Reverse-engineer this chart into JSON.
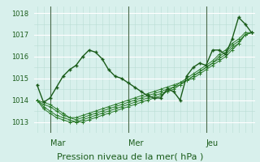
{
  "xlabel": "Pression niveau de la mer( hPa )",
  "ylim": [
    1012.5,
    1018.3
  ],
  "yticks": [
    1013,
    1014,
    1015,
    1016,
    1017,
    1018
  ],
  "day_labels": [
    "Mar",
    "Mer",
    "Jeu"
  ],
  "day_positions": [
    2,
    14,
    26
  ],
  "bg_color": "#d8f0ec",
  "grid_color_major": "#b8ddd4",
  "grid_color_minor": "#c8eae2",
  "series": [
    [
      1014.7,
      1013.9,
      1014.1,
      1014.6,
      1015.1,
      1015.4,
      1015.6,
      1016.0,
      1016.3,
      1016.2,
      1015.9,
      1015.4,
      1015.1,
      1015.0,
      1014.8,
      1014.6,
      1014.4,
      1014.2,
      1014.1,
      1014.1,
      1014.5,
      1014.4,
      1014.0,
      1015.1,
      1015.5,
      1015.7,
      1015.6,
      1016.3,
      1016.3,
      1016.1,
      1016.8,
      1017.8,
      1017.5,
      1017.1
    ],
    [
      1014.0,
      1013.9,
      1013.8,
      1013.6,
      1013.4,
      1013.2,
      1013.2,
      1013.3,
      1013.4,
      1013.5,
      1013.6,
      1013.7,
      1013.8,
      1013.9,
      1014.0,
      1014.1,
      1014.2,
      1014.3,
      1014.4,
      1014.5,
      1014.6,
      1014.7,
      1014.8,
      1014.9,
      1015.0,
      1015.2,
      1015.4,
      1015.6,
      1015.8,
      1016.0,
      1016.3,
      1016.6,
      1017.0,
      1017.1
    ],
    [
      1014.0,
      1013.8,
      1013.7,
      1013.5,
      1013.3,
      1013.2,
      1013.1,
      1013.2,
      1013.3,
      1013.4,
      1013.5,
      1013.6,
      1013.7,
      1013.8,
      1013.9,
      1014.0,
      1014.1,
      1014.2,
      1014.3,
      1014.4,
      1014.5,
      1014.6,
      1014.7,
      1014.9,
      1015.1,
      1015.3,
      1015.5,
      1015.7,
      1015.9,
      1016.1,
      1016.4,
      1016.6,
      1017.0,
      1017.1
    ],
    [
      1014.0,
      1013.7,
      1013.5,
      1013.3,
      1013.2,
      1013.1,
      1013.0,
      1013.1,
      1013.2,
      1013.3,
      1013.4,
      1013.5,
      1013.6,
      1013.7,
      1013.8,
      1013.9,
      1014.0,
      1014.1,
      1014.2,
      1014.3,
      1014.4,
      1014.5,
      1014.7,
      1014.9,
      1015.1,
      1015.3,
      1015.5,
      1015.7,
      1016.0,
      1016.2,
      1016.5,
      1016.7,
      1017.0,
      1017.1
    ],
    [
      1014.0,
      1013.6,
      1013.4,
      1013.2,
      1013.1,
      1013.0,
      1013.0,
      1013.0,
      1013.1,
      1013.2,
      1013.3,
      1013.4,
      1013.5,
      1013.6,
      1013.7,
      1013.8,
      1013.9,
      1014.0,
      1014.1,
      1014.2,
      1014.4,
      1014.6,
      1014.8,
      1015.0,
      1015.2,
      1015.4,
      1015.6,
      1015.8,
      1016.1,
      1016.3,
      1016.6,
      1016.8,
      1017.1,
      1017.1
    ]
  ],
  "series_styles": [
    {
      "color": "#1a5c1a",
      "lw": 1.0,
      "marker": "+",
      "ms": 3.5,
      "mew": 1.0
    },
    {
      "color": "#2a7a2a",
      "lw": 0.7,
      "marker": "+",
      "ms": 2.5,
      "mew": 0.7
    },
    {
      "color": "#2a7a2a",
      "lw": 0.7,
      "marker": "+",
      "ms": 2.5,
      "mew": 0.7
    },
    {
      "color": "#2a7a2a",
      "lw": 0.7,
      "marker": "+",
      "ms": 2.5,
      "mew": 0.7
    },
    {
      "color": "#2a7a2a",
      "lw": 0.7,
      "marker": "+",
      "ms": 2.5,
      "mew": 0.7
    }
  ],
  "vline_color": "#4a6a4a",
  "vline_lw": 0.8,
  "tick_label_color": "#1a5c1a",
  "xlabel_color": "#1a5c1a",
  "xlabel_fontsize": 8,
  "day_label_fontsize": 7,
  "ytick_fontsize": 6
}
